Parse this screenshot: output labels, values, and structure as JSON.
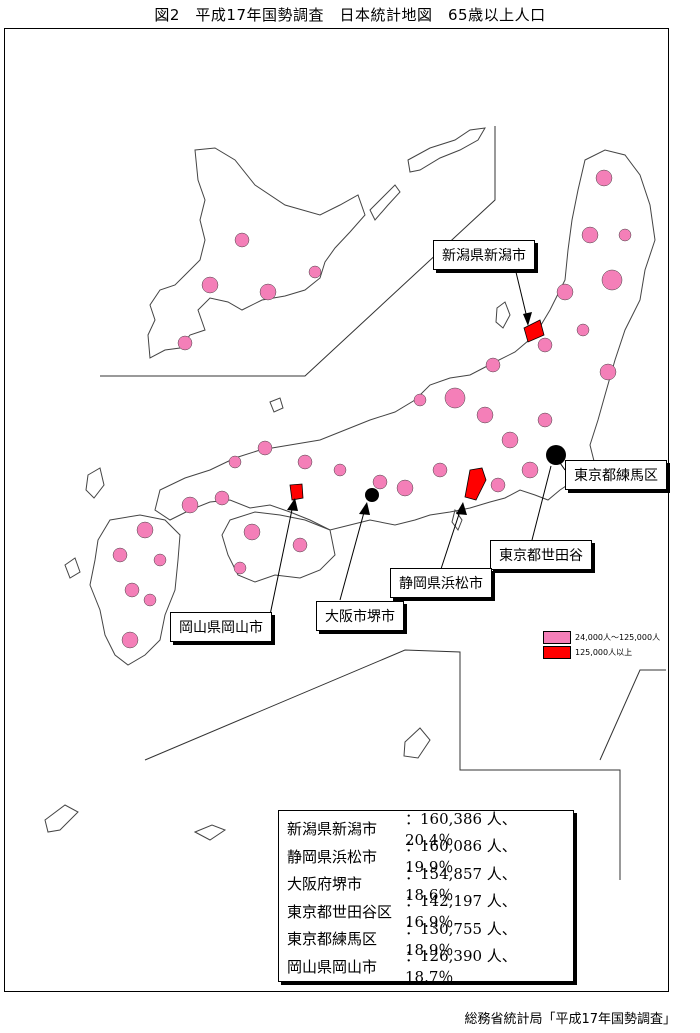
{
  "title": "図2　平成17年国勢調査　日本統計地図　65歳以上人口",
  "source": "総務省統計局「平成17年国勢調査」",
  "colors": {
    "mid": "#f47fb8",
    "high": "#ff0000",
    "outline": "#444444",
    "border": "#000000"
  },
  "legend": [
    {
      "label": "24,000人～125,000人",
      "color": "#f47fb8"
    },
    {
      "label": "125,000人以上",
      "color": "#ff0000"
    }
  ],
  "callouts": {
    "niigata": "新潟県新潟市",
    "nerima": "東京都練馬区",
    "setagaya": "東京都世田谷",
    "hamamatsu": "静岡県浜松市",
    "sakai": "大阪市堺市",
    "okayama": "岡山県岡山市"
  },
  "stats": [
    {
      "city": "新潟県新潟市",
      "value": "：160,386 人、20.4％"
    },
    {
      "city": "静岡県浜松市",
      "value": "：160,086 人、19.9％"
    },
    {
      "city": "大阪府堺市",
      "value": "：154,857 人、18.6％"
    },
    {
      "city": "東京都世田谷区",
      "value": "：142,197 人、16.9％"
    },
    {
      "city": "東京都練馬区",
      "value": "：130,755 人、18.9％"
    },
    {
      "city": "岡山県岡山市",
      "value": "：126,390 人、18.7％"
    }
  ]
}
